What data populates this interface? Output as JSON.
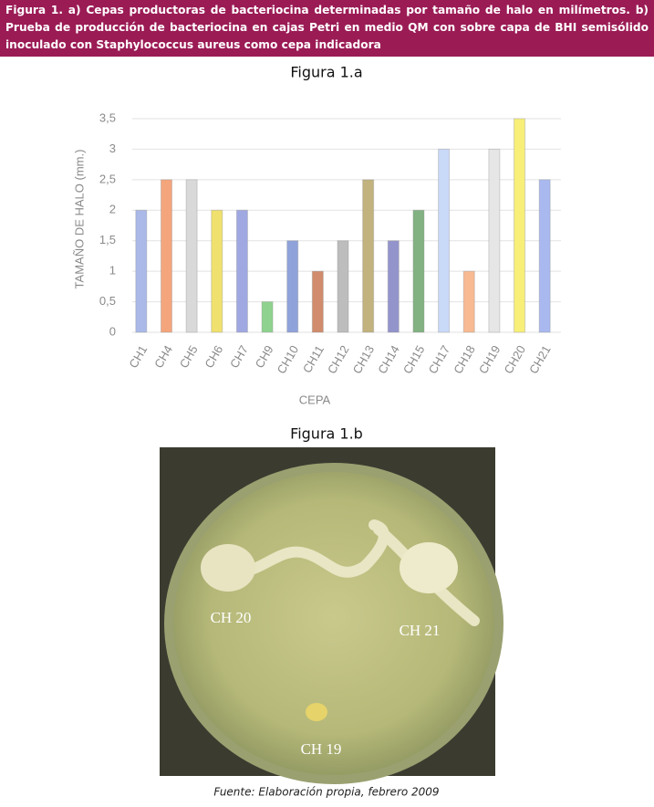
{
  "header": {
    "caption": "Figura 1. a) Cepas productoras de bacteriocina determinadas por tamaño de halo en milímetros. b) Prueba de producción de bacteriocina en cajas Petri en medio QM con sobre capa de BHI semisólido inoculado con Staphylococcus aureus como cepa indicadora"
  },
  "chart_data": {
    "type": "bar",
    "title": "Figura 1.a",
    "y_label": "TAMAÑO DE HALO (mm.)",
    "x_label": "CEPA",
    "categories": [
      "CH1",
      "CH4",
      "CH5",
      "CH6",
      "CH7",
      "CH9",
      "CH10",
      "CH11",
      "CH12",
      "CH13",
      "CH14",
      "CH15",
      "CH17",
      "CH18",
      "CH19",
      "CH20",
      "CH21"
    ],
    "values": [
      2,
      2.5,
      2.5,
      2,
      2,
      0.5,
      1.5,
      1,
      1.5,
      2.5,
      1.5,
      2,
      3,
      1,
      3,
      3.5,
      2.5
    ],
    "colors": [
      "#aab9e8",
      "#f4a57c",
      "#d9d9d9",
      "#f0e06e",
      "#a0a8e2",
      "#8fd28f",
      "#8fa2da",
      "#d08c6c",
      "#bdbdbd",
      "#c2b27e",
      "#9494cc",
      "#82b282",
      "#c9d9f8",
      "#f8ba92",
      "#e6e6e6",
      "#f7ef78",
      "#a9b9f0"
    ],
    "ylim": [
      0,
      3.5
    ],
    "yticks": [
      0,
      {
        "value": 0.5,
        "label": "0,5"
      },
      1,
      {
        "value": 1.5,
        "label": "1,5"
      },
      2,
      {
        "value": 2.5,
        "label": "2,5"
      },
      3,
      {
        "value": 3.5,
        "label": "3,5"
      }
    ],
    "grid": true
  },
  "figure_b": {
    "title": "Figura 1.b",
    "labels": [
      "CH 20",
      "CH 21",
      "CH 19"
    ]
  },
  "source": "Fuente: Elaboración propia, febrero 2009"
}
